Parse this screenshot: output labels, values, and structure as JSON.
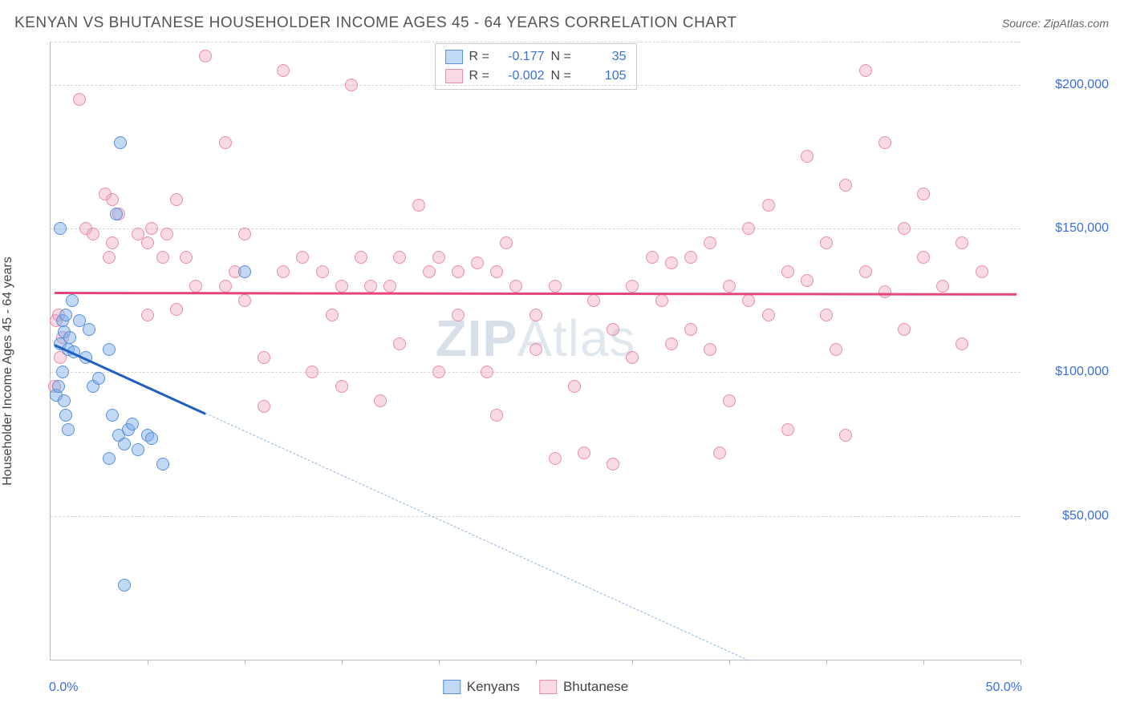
{
  "header": {
    "title": "KENYAN VS BHUTANESE HOUSEHOLDER INCOME AGES 45 - 64 YEARS CORRELATION CHART",
    "source": "Source: ZipAtlas.com"
  },
  "chart": {
    "type": "scatter",
    "ylabel": "Householder Income Ages 45 - 64 years",
    "xlim": [
      0,
      50
    ],
    "ylim": [
      0,
      215000
    ],
    "xtick_label_left": "0.0%",
    "xtick_label_right": "50.0%",
    "xticks": [
      5,
      10,
      15,
      20,
      25,
      30,
      35,
      40,
      45,
      50
    ],
    "yticks": [
      50000,
      100000,
      150000,
      200000
    ],
    "ytick_labels": [
      "$50,000",
      "$100,000",
      "$150,000",
      "$200,000"
    ],
    "grid_color": "#d5d5d5",
    "axis_color": "#bbbbbb",
    "background_color": "#ffffff",
    "point_radius": 8,
    "series": {
      "kenyans": {
        "label": "Kenyans",
        "fill": "rgba(120,170,235,0.45)",
        "stroke": "#5a8fd6",
        "trend_color": "#1f5fc4",
        "trend_width": 3,
        "trend_dash_color": "#8fb4e8",
        "R": "-0.177",
        "N": "35",
        "trend_solid": {
          "x1": 0.2,
          "y1": 110000,
          "x2": 8.0,
          "y2": 86000
        },
        "trend_dash": {
          "x1": 8.0,
          "y1": 86000,
          "x2": 36.0,
          "y2": 0
        },
        "points": [
          [
            0.3,
            92000
          ],
          [
            0.4,
            95000
          ],
          [
            0.5,
            110000
          ],
          [
            0.6,
            118000
          ],
          [
            0.7,
            114000
          ],
          [
            0.8,
            120000
          ],
          [
            0.9,
            108000
          ],
          [
            1.0,
            112000
          ],
          [
            1.1,
            125000
          ],
          [
            1.2,
            107000
          ],
          [
            0.5,
            150000
          ],
          [
            0.6,
            100000
          ],
          [
            0.7,
            90000
          ],
          [
            0.8,
            85000
          ],
          [
            0.9,
            80000
          ],
          [
            1.5,
            118000
          ],
          [
            1.8,
            105000
          ],
          [
            2.0,
            115000
          ],
          [
            2.2,
            95000
          ],
          [
            2.5,
            98000
          ],
          [
            3.0,
            108000
          ],
          [
            3.2,
            85000
          ],
          [
            3.0,
            70000
          ],
          [
            3.5,
            78000
          ],
          [
            3.8,
            75000
          ],
          [
            4.0,
            80000
          ],
          [
            4.2,
            82000
          ],
          [
            4.5,
            73000
          ],
          [
            5.0,
            78000
          ],
          [
            5.2,
            77000
          ],
          [
            5.8,
            68000
          ],
          [
            3.6,
            180000
          ],
          [
            3.8,
            26000
          ],
          [
            10.0,
            135000
          ],
          [
            3.4,
            155000
          ]
        ]
      },
      "bhutanese": {
        "label": "Bhutanese",
        "fill": "rgba(240,160,185,0.40)",
        "stroke": "#e48fae",
        "trend_color": "#e4457c",
        "trend_width": 3,
        "R": "-0.002",
        "N": "105",
        "trend_solid": {
          "x1": 0.2,
          "y1": 128000,
          "x2": 49.8,
          "y2": 127500
        },
        "points": [
          [
            0.3,
            118000
          ],
          [
            0.4,
            120000
          ],
          [
            0.2,
            95000
          ],
          [
            0.5,
            105000
          ],
          [
            0.6,
            112000
          ],
          [
            1.8,
            150000
          ],
          [
            2.2,
            148000
          ],
          [
            2.8,
            162000
          ],
          [
            3.2,
            160000
          ],
          [
            3.5,
            155000
          ],
          [
            3.2,
            145000
          ],
          [
            3.0,
            140000
          ],
          [
            4.5,
            148000
          ],
          [
            5.0,
            145000
          ],
          [
            5.2,
            150000
          ],
          [
            5.8,
            140000
          ],
          [
            6.0,
            148000
          ],
          [
            6.5,
            160000
          ],
          [
            7.0,
            140000
          ],
          [
            7.5,
            130000
          ],
          [
            8.0,
            210000
          ],
          [
            9.0,
            180000
          ],
          [
            9.0,
            130000
          ],
          [
            9.5,
            135000
          ],
          [
            10.0,
            125000
          ],
          [
            10.0,
            148000
          ],
          [
            11.0,
            88000
          ],
          [
            11.0,
            105000
          ],
          [
            12.0,
            135000
          ],
          [
            12.0,
            205000
          ],
          [
            13.0,
            140000
          ],
          [
            13.5,
            100000
          ],
          [
            14.0,
            135000
          ],
          [
            15.0,
            130000
          ],
          [
            15.0,
            95000
          ],
          [
            15.5,
            200000
          ],
          [
            16.0,
            140000
          ],
          [
            16.5,
            130000
          ],
          [
            17.0,
            90000
          ],
          [
            18.0,
            110000
          ],
          [
            18.0,
            140000
          ],
          [
            19.0,
            158000
          ],
          [
            19.5,
            135000
          ],
          [
            20.0,
            140000
          ],
          [
            20.0,
            100000
          ],
          [
            21.0,
            120000
          ],
          [
            21.0,
            135000
          ],
          [
            22.0,
            138000
          ],
          [
            22.5,
            100000
          ],
          [
            23.0,
            135000
          ],
          [
            23.0,
            85000
          ],
          [
            23.5,
            145000
          ],
          [
            24.0,
            130000
          ],
          [
            25.0,
            120000
          ],
          [
            25.0,
            108000
          ],
          [
            26.0,
            70000
          ],
          [
            26.0,
            130000
          ],
          [
            27.0,
            95000
          ],
          [
            27.5,
            72000
          ],
          [
            28.0,
            125000
          ],
          [
            29.0,
            115000
          ],
          [
            29.0,
            68000
          ],
          [
            30.0,
            130000
          ],
          [
            30.0,
            105000
          ],
          [
            31.0,
            140000
          ],
          [
            32.0,
            138000
          ],
          [
            32.0,
            110000
          ],
          [
            33.0,
            115000
          ],
          [
            33.0,
            140000
          ],
          [
            34.0,
            145000
          ],
          [
            34.0,
            108000
          ],
          [
            35.0,
            90000
          ],
          [
            35.0,
            130000
          ],
          [
            36.0,
            150000
          ],
          [
            36.0,
            125000
          ],
          [
            37.0,
            120000
          ],
          [
            37.0,
            158000
          ],
          [
            38.0,
            135000
          ],
          [
            38.0,
            80000
          ],
          [
            39.0,
            132000
          ],
          [
            39.0,
            175000
          ],
          [
            40.0,
            145000
          ],
          [
            40.0,
            120000
          ],
          [
            41.0,
            78000
          ],
          [
            41.0,
            165000
          ],
          [
            42.0,
            205000
          ],
          [
            42.0,
            135000
          ],
          [
            43.0,
            128000
          ],
          [
            43.0,
            180000
          ],
          [
            44.0,
            150000
          ],
          [
            44.0,
            115000
          ],
          [
            45.0,
            140000
          ],
          [
            45.0,
            162000
          ],
          [
            46.0,
            130000
          ],
          [
            47.0,
            145000
          ],
          [
            47.0,
            110000
          ],
          [
            48.0,
            135000
          ],
          [
            1.5,
            195000
          ],
          [
            5.0,
            120000
          ],
          [
            6.5,
            122000
          ],
          [
            14.5,
            120000
          ],
          [
            17.5,
            130000
          ],
          [
            31.5,
            125000
          ],
          [
            34.5,
            72000
          ],
          [
            40.5,
            108000
          ]
        ]
      }
    },
    "stats_legend_labels": {
      "R": "R =",
      "N": "N ="
    },
    "watermark": {
      "part1": "ZIP",
      "part2": "Atlas"
    }
  }
}
